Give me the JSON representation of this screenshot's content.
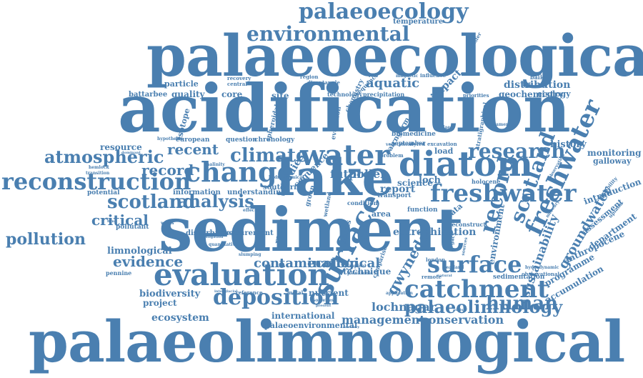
{
  "cloud": {
    "color": "#4a7fb0",
    "words": [
      "palaeolimnological",
      "palaeoecological",
      "acidification",
      "sediment",
      "lake",
      "diatom",
      "palaeoecology",
      "environmental",
      "evaluation",
      "change",
      "water",
      "reconstruction",
      "atmospheric",
      "climate",
      "research",
      "catchment",
      "deposition",
      "surface",
      "freshwater",
      "scotland",
      "analysis",
      "recent",
      "record",
      "pollution",
      "critical",
      "evidence",
      "human",
      "palaeolimnology",
      "lochnagar",
      "conservation",
      "management",
      "ecosystem",
      "project",
      "biodiversity",
      "ecological",
      "contamination",
      "limnological",
      "temperature",
      "aquatic",
      "impact",
      "distribution",
      "geochemistry",
      "ecology",
      "history",
      "monitoring",
      "galloway",
      "introduction",
      "programme",
      "accumulation",
      "anthropocene",
      "department",
      "assessment",
      "groundwater",
      "sustainability",
      "gwynedd",
      "eutrophication",
      "environment",
      "science",
      "report",
      "pollen",
      "future",
      "studies",
      "loch",
      "data",
      "load",
      "site",
      "core",
      "quality",
      "particle",
      "battarbee",
      "resource",
      "potential",
      "information",
      "understanding",
      "disturbance",
      "measurement",
      "pollutant",
      "pennine",
      "technique",
      "nutrient",
      "international",
      "palaeoenvironmental",
      "isotope",
      "european",
      "question",
      "chronology",
      "holocene",
      "reconstruct",
      "influence",
      "baikal",
      "transfer",
      "upland",
      "variability",
      "sedimentation",
      "observational",
      "hydrodynamic",
      "stratigraphical",
      "chemistry",
      "technology",
      "precipitation",
      "spheroidal",
      "cairngorm",
      "evolution",
      "sequence",
      "southern",
      "group",
      "function",
      "area",
      "term",
      "range",
      "status",
      "moor",
      "central",
      "recovery",
      "region",
      "sequence",
      "biomedicine",
      "september",
      "priorities",
      "magnetic",
      "palaeo",
      "dyfed",
      "vegetation",
      "excavation",
      "problem",
      "remote",
      "london",
      "legacy",
      "metal",
      "peatland",
      "reference",
      "interglacial",
      "slumping",
      "tropical",
      "planktonic",
      "application",
      "societies",
      "present",
      "salinity",
      "hemlock",
      "transition",
      "hypothesis",
      "dominant",
      "characteristic",
      "contemporary",
      "comparison",
      "identification",
      "sources",
      "natural",
      "advisory",
      "adviser",
      "bathymetry",
      "america",
      "investigation",
      "quantitative",
      "outcome",
      "wetland",
      "transport",
      "condition",
      "wales",
      "effect",
      "flyn",
      "role",
      "disentangle",
      "extent",
      "preliminary",
      "important",
      "system",
      "population",
      "observation",
      "mercury",
      "sudden",
      "hydrochemical",
      "reconnaissance",
      "discontinuous",
      "interaction",
      "causes",
      "stable"
    ]
  }
}
